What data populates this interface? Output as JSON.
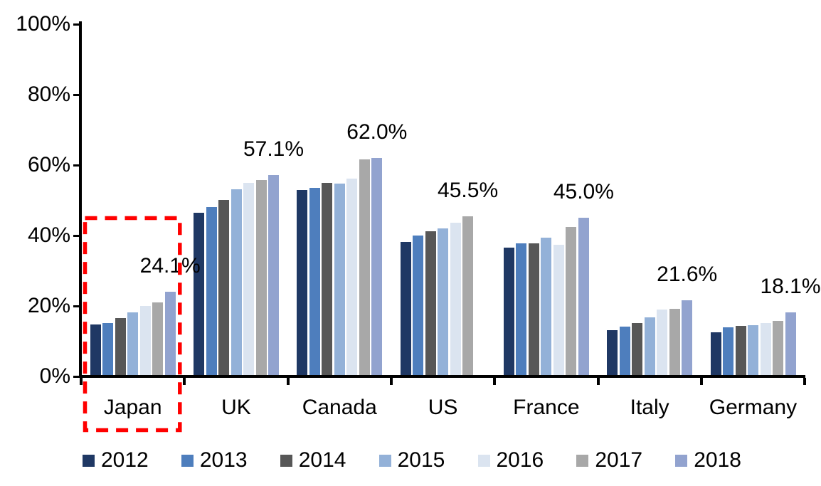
{
  "chart_data": {
    "type": "bar",
    "title": "",
    "xlabel": "",
    "ylabel": "",
    "categories": [
      "Japan",
      "UK",
      "Canada",
      "US",
      "France",
      "Italy",
      "Germany"
    ],
    "series": [
      {
        "name": "2012",
        "color": "#1F3864",
        "values": [
          14.7,
          46.5,
          53.0,
          38.2,
          36.5,
          13.2,
          12.5
        ]
      },
      {
        "name": "2013",
        "color": "#4E7EBD",
        "values": [
          15.1,
          48.0,
          53.5,
          40.1,
          37.7,
          14.1,
          13.9
        ]
      },
      {
        "name": "2014",
        "color": "#575757",
        "values": [
          16.6,
          50.1,
          55.0,
          41.2,
          37.7,
          15.2,
          14.3
        ]
      },
      {
        "name": "2015",
        "color": "#93B1D8",
        "values": [
          18.1,
          53.1,
          54.8,
          42.1,
          39.3,
          16.8,
          14.6
        ]
      },
      {
        "name": "2016",
        "color": "#DBE4F0",
        "values": [
          20.0,
          54.9,
          56.2,
          43.6,
          37.4,
          19.0,
          15.2
        ]
      },
      {
        "name": "2017",
        "color": "#A8A8A8",
        "values": [
          21.0,
          55.8,
          61.7,
          45.5,
          42.4,
          19.2,
          15.8
        ]
      },
      {
        "name": "2018",
        "color": "#92A3CF",
        "values": [
          24.1,
          57.1,
          62.0,
          null,
          45.0,
          21.6,
          18.1
        ]
      }
    ],
    "data_labels": [
      "24.1%",
      "57.1%",
      "62.0%",
      "45.5%",
      "45.0%",
      "21.6%",
      "18.1%"
    ],
    "y_axis": {
      "tick_labels": [
        "0%",
        "20%",
        "40%",
        "60%",
        "80%",
        "100%"
      ],
      "tick_values": [
        0,
        20,
        40,
        60,
        80,
        100
      ],
      "ylim": [
        0,
        100
      ]
    },
    "legend": {
      "position": "bottom",
      "entries": [
        "2012",
        "2013",
        "2014",
        "2015",
        "2016",
        "2017",
        "2018"
      ]
    },
    "highlight": {
      "shape": "dashed-rectangle",
      "category": "Japan",
      "color": "#FF0000"
    },
    "grid": false,
    "axis_color": "#000000",
    "background_color": "#FFFFFF"
  }
}
